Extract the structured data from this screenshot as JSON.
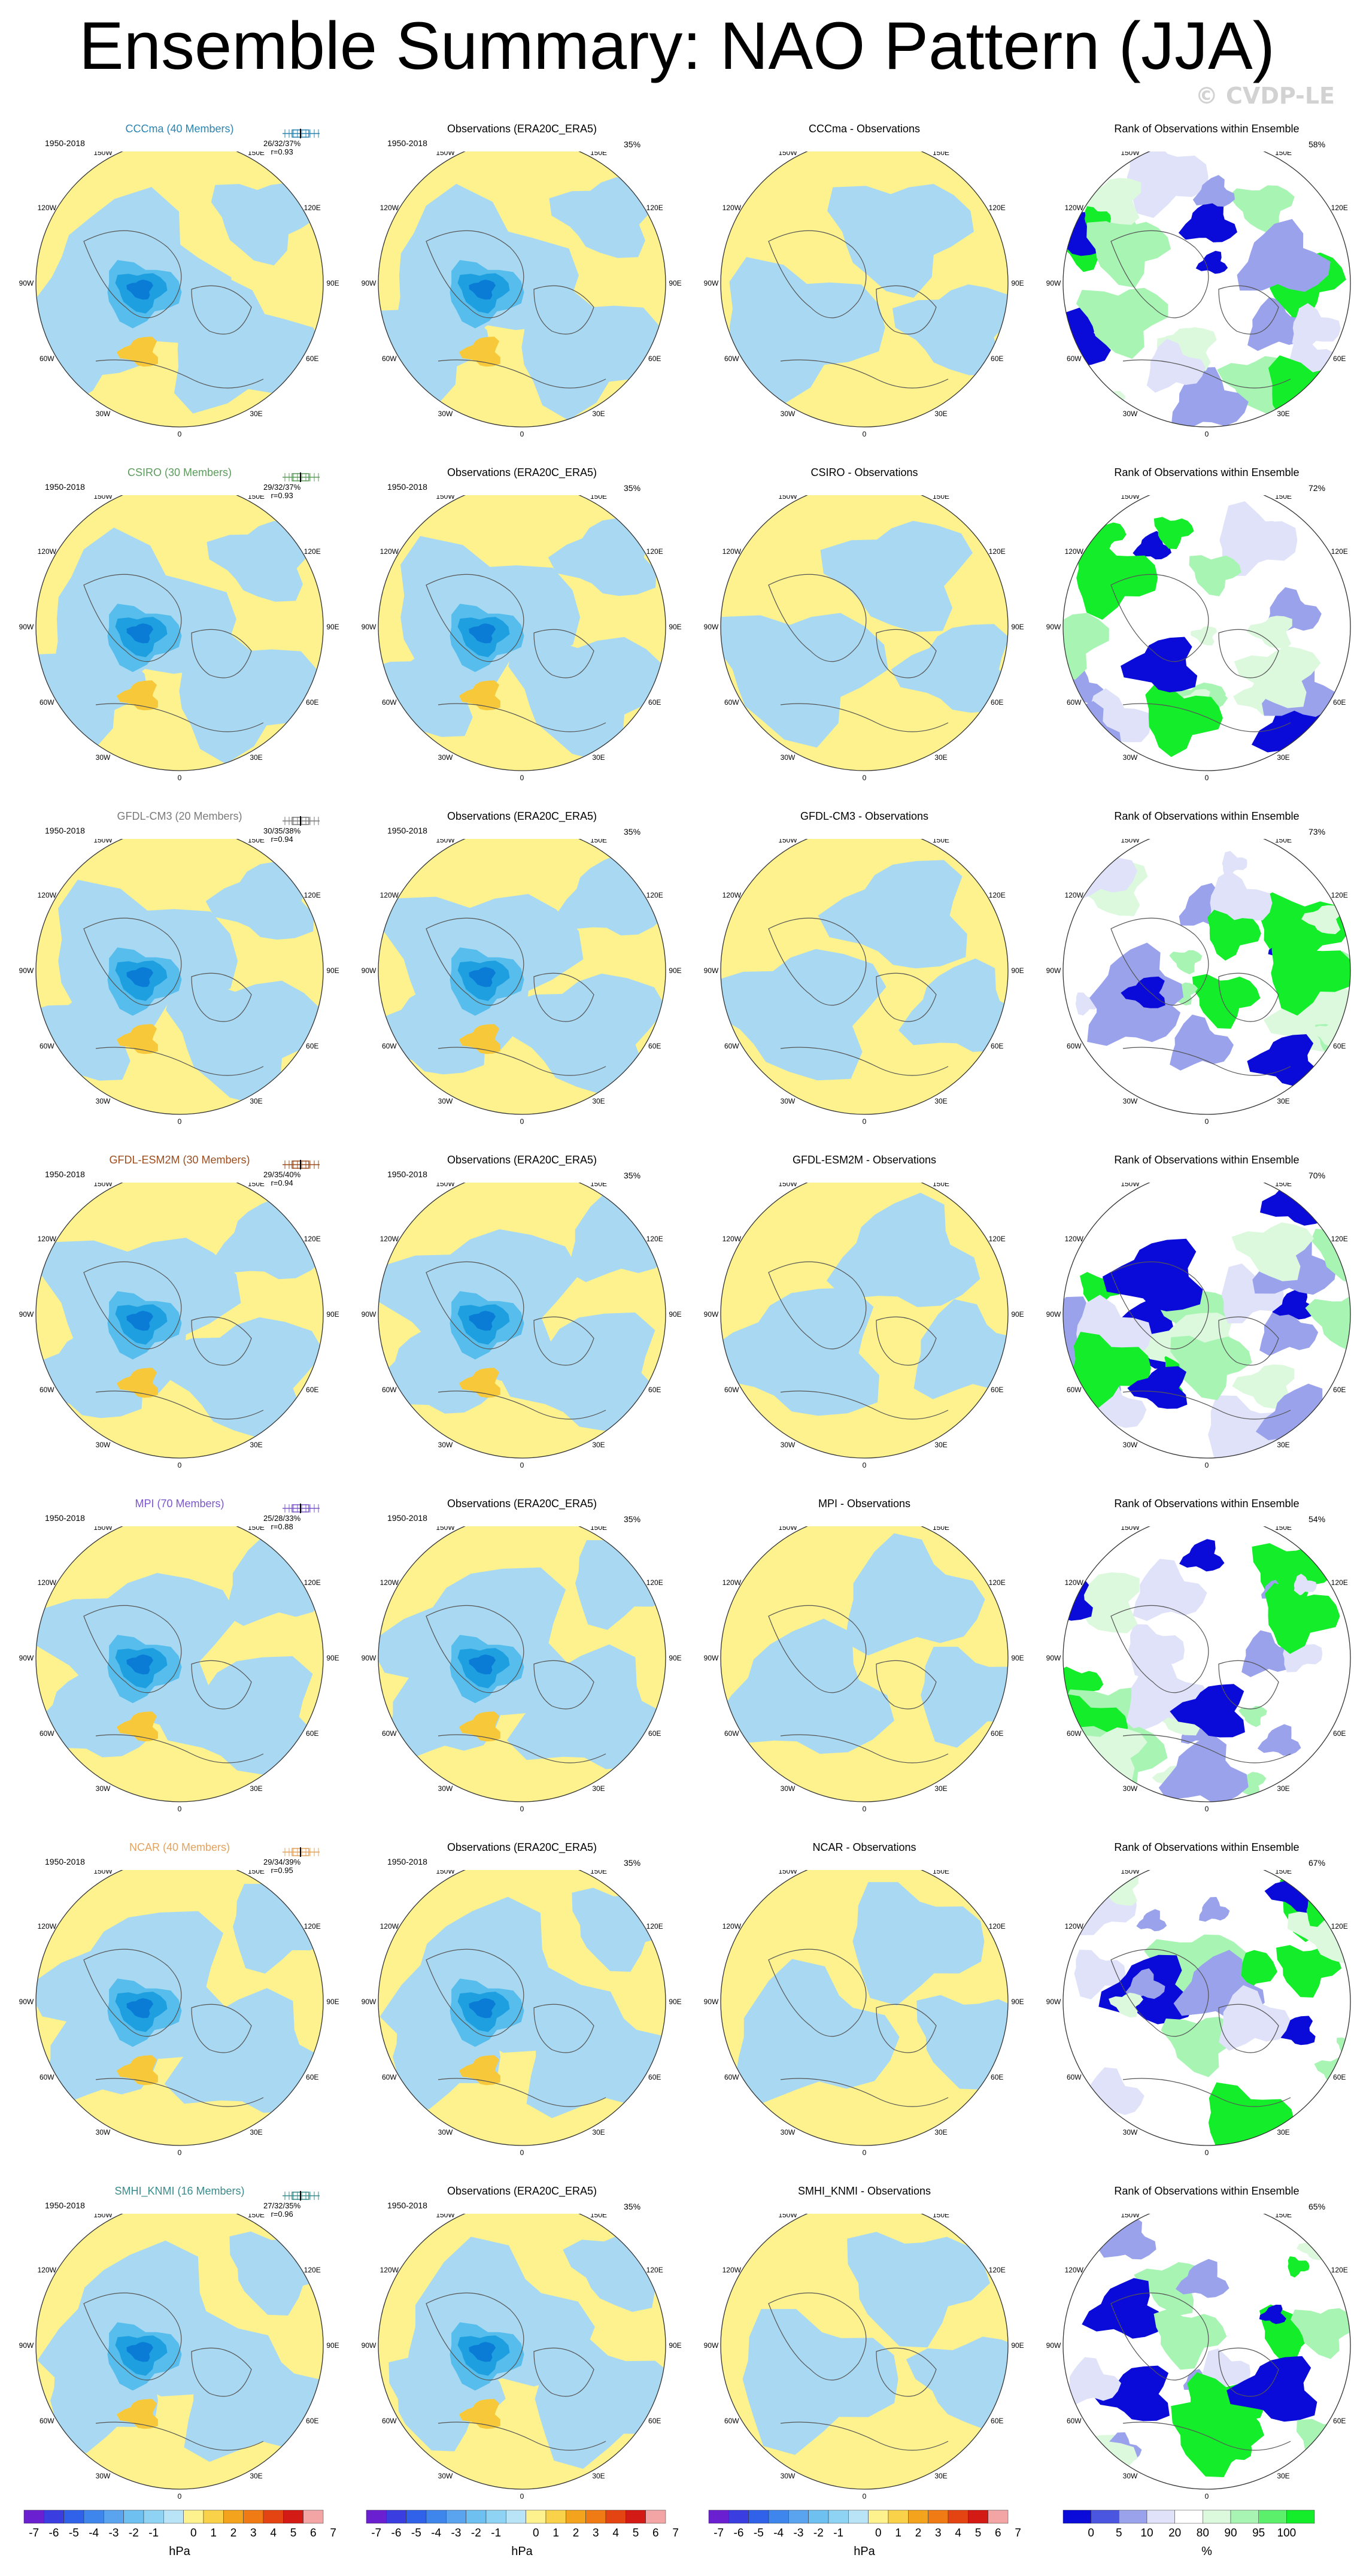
{
  "page": {
    "title": "Ensemble Summary: NAO Pattern (JJA)",
    "credit": "© CVDP-LE"
  },
  "colors": {
    "neg1": "#a9d9f2",
    "neg2": "#56bdec",
    "neg3": "#1e9fe0",
    "neg4": "#0a7cd6",
    "pos1": "#fdf28d",
    "pos2": "#f7c93a",
    "pos3": "#f4a31c",
    "rank_low": "#0a0ad9",
    "rank_mid": "#9aa2ec",
    "rank_light": "#dfe2f8",
    "rank_high": "#14ee2a",
    "rank_hl": "#a7f4b3",
    "rank_hll": "#dcf9de",
    "coast": "#555555"
  },
  "rows": [
    {
      "model": "CCCma (40 Members)",
      "color": "#2a84b0",
      "stats": "26/32/37%",
      "r": "r=0.93",
      "obs_pct": "35%",
      "rank_pct": "58%",
      "diff_title": "CCCma - Observations"
    },
    {
      "model": "CSIRO (30 Members)",
      "color": "#5b9b5b",
      "stats": "29/32/37%",
      "r": "r=0.93",
      "obs_pct": "35%",
      "rank_pct": "72%",
      "diff_title": "CSIRO - Observations"
    },
    {
      "model": "GFDL-CM3 (20 Members)",
      "color": "#7a7a7a",
      "stats": "30/35/38%",
      "r": "r=0.94",
      "obs_pct": "35%",
      "rank_pct": "73%",
      "diff_title": "GFDL-CM3 - Observations"
    },
    {
      "model": "GFDL-ESM2M (30 Members)",
      "color": "#9b4d1f",
      "stats": "29/35/40%",
      "r": "r=0.94",
      "obs_pct": "35%",
      "rank_pct": "70%",
      "diff_title": "GFDL-ESM2M - Observations"
    },
    {
      "model": "MPI (70 Members)",
      "color": "#7b58c9",
      "stats": "25/28/33%",
      "r": "r=0.88",
      "obs_pct": "35%",
      "rank_pct": "54%",
      "diff_title": "MPI - Observations"
    },
    {
      "model": "NCAR (40 Members)",
      "color": "#e3a35e",
      "stats": "29/34/39%",
      "r": "r=0.95",
      "obs_pct": "35%",
      "rank_pct": "67%",
      "diff_title": "NCAR - Observations"
    },
    {
      "model": "SMHI_KNMI (16 Members)",
      "color": "#3a8c8c",
      "stats": "27/32/35%",
      "r": "r=0.96",
      "obs_pct": "35%",
      "rank_pct": "65%",
      "diff_title": "SMHI_KNMI - Observations"
    }
  ],
  "common": {
    "period": "1950-2018",
    "obs_title": "Observations (ERA20C_ERA5)",
    "rank_title": "Rank of Observations within Ensemble",
    "lon_labels": [
      "180",
      "150E",
      "120E",
      "90E",
      "60E",
      "30E",
      "0",
      "30W",
      "60W",
      "90W",
      "120W",
      "150W"
    ]
  },
  "colorbars": {
    "hpa_ticks": [
      "-7",
      "-6",
      "-5",
      "-4",
      "-3",
      "-2",
      "-1",
      "0",
      "1",
      "2",
      "3",
      "4",
      "5",
      "6",
      "7"
    ],
    "hpa_unit": "hPa",
    "hpa_colors": [
      "#6a1fd0",
      "#3a3de0",
      "#2f62e8",
      "#3f86ec",
      "#5aa3ee",
      "#6ec0f0",
      "#8fd3f4",
      "#b9e4f7",
      "#fdf28d",
      "#f9d24a",
      "#f4a31c",
      "#f07a14",
      "#e44411",
      "#d41a14",
      "#f3a5a5"
    ],
    "rank_ticks": [
      "0",
      "5",
      "10",
      "20",
      "80",
      "90",
      "95",
      "100"
    ],
    "rank_unit": "%",
    "rank_colors": [
      "#0a0ad9",
      "#4a55e0",
      "#9aa2ec",
      "#dfe2f8",
      "#ffffff",
      "#dcf9de",
      "#a7f4b3",
      "#5cef6c",
      "#14ee2a"
    ]
  }
}
